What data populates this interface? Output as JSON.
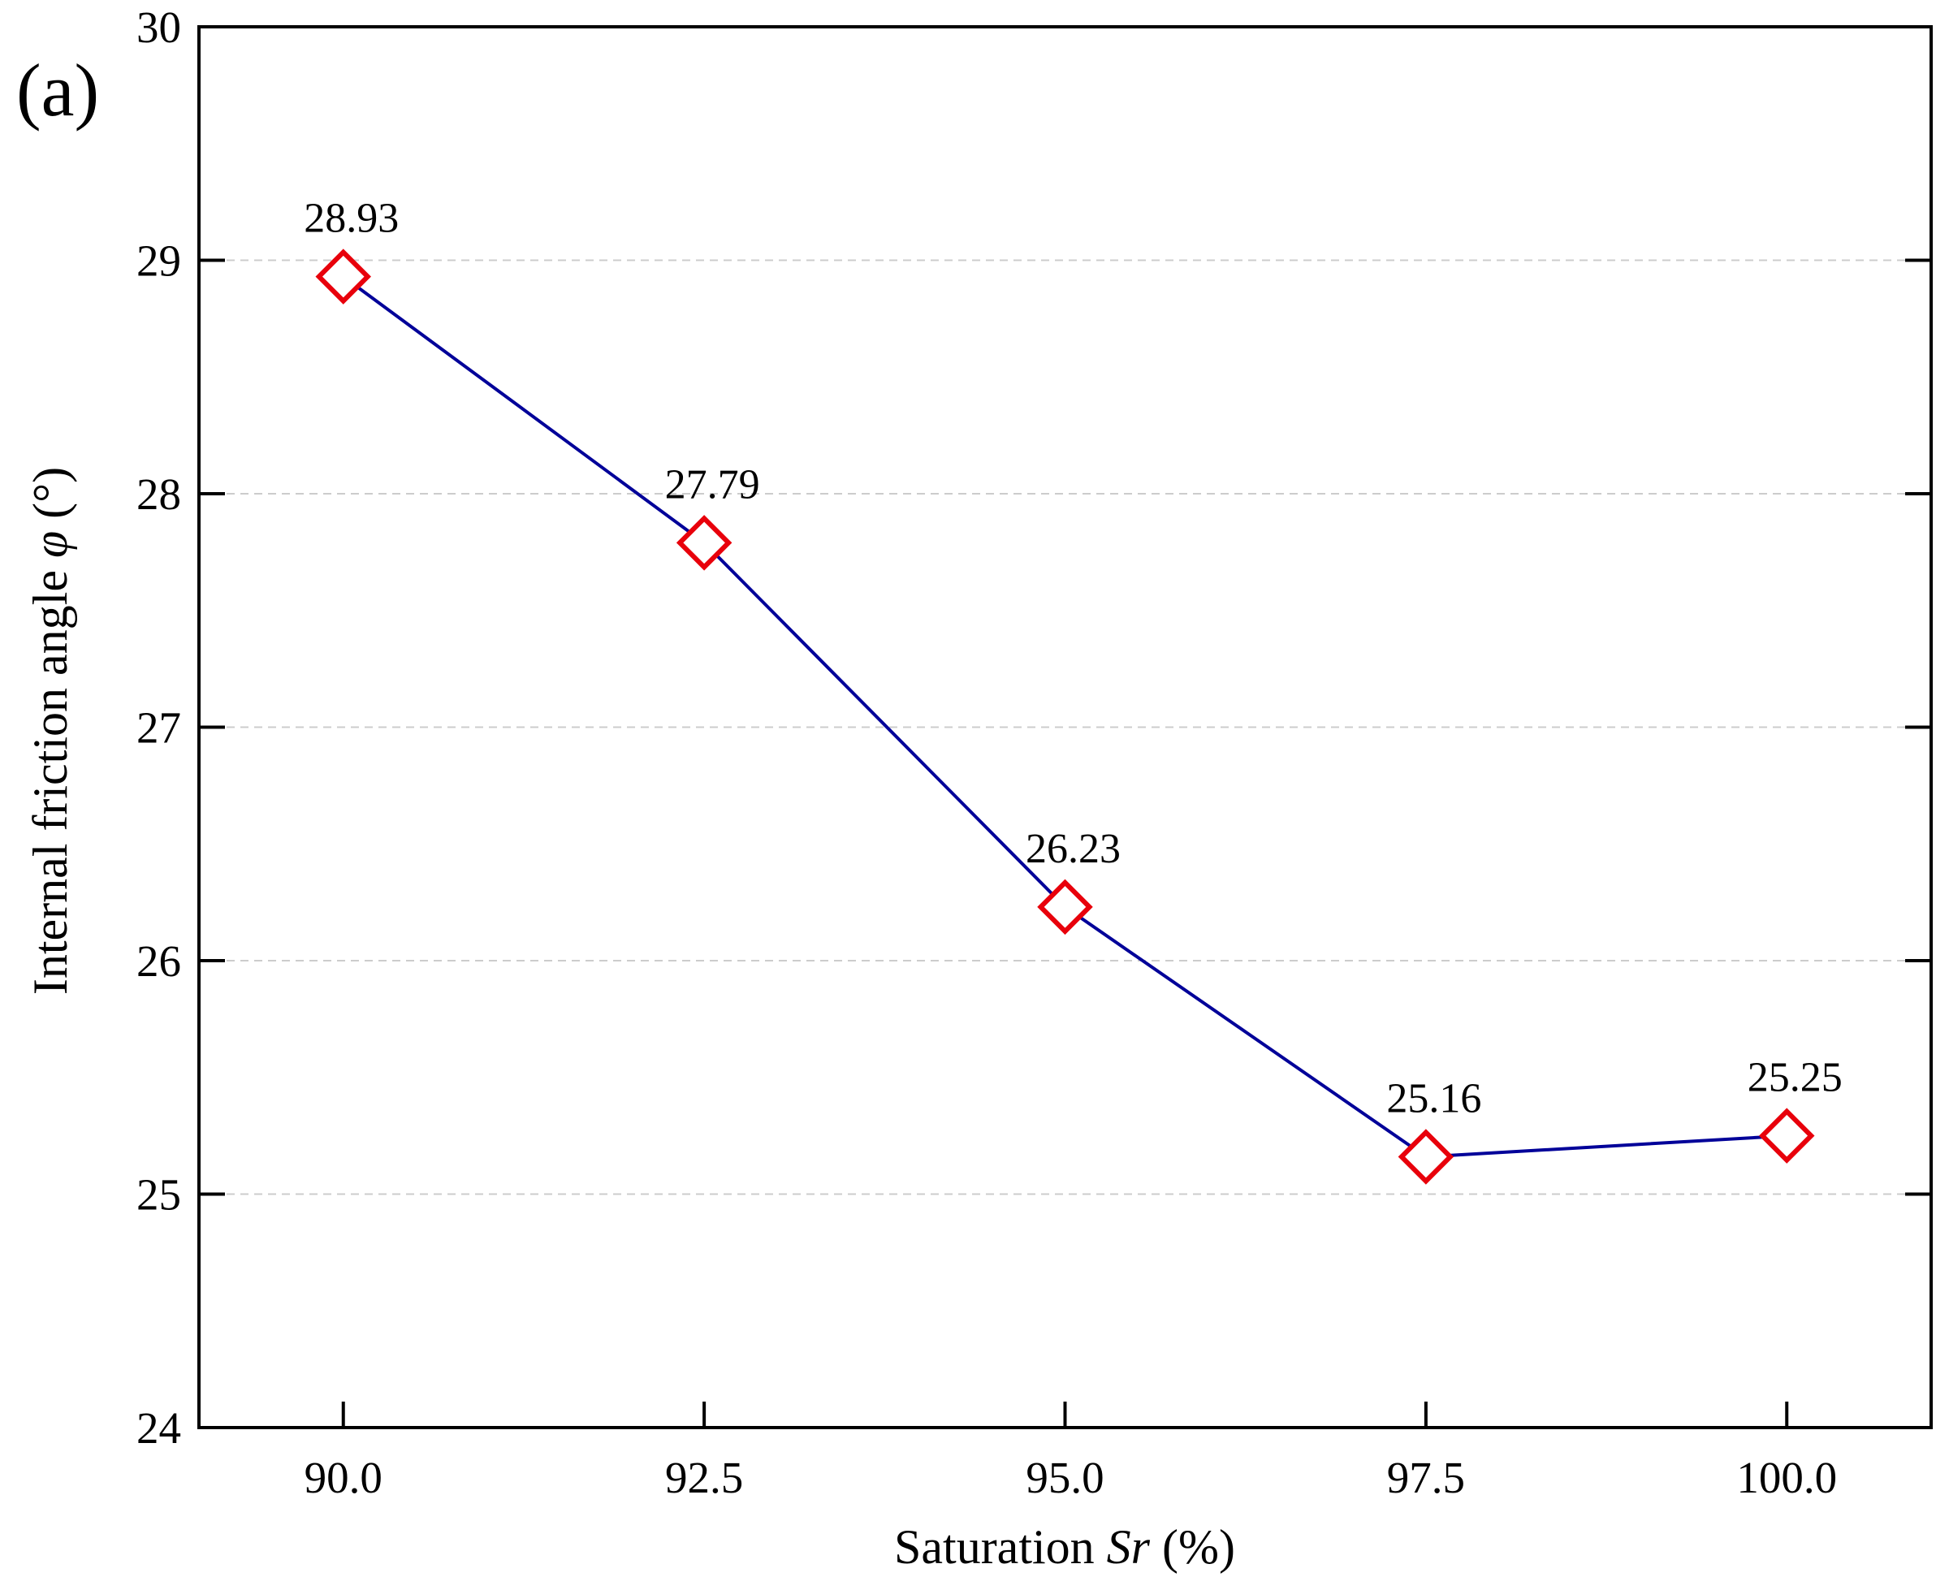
{
  "chart_data": {
    "type": "line",
    "panel_label": "(a)",
    "x": [
      90.0,
      92.5,
      95.0,
      97.5,
      100.0
    ],
    "x_tick_labels": [
      "90.0",
      "92.5",
      "95.0",
      "97.5",
      "100.0"
    ],
    "xlim": [
      89.0,
      101.0
    ],
    "y_ticks": [
      24,
      25,
      26,
      27,
      28,
      29,
      30
    ],
    "y_tick_labels": [
      "24",
      "25",
      "26",
      "27",
      "28",
      "29",
      "30"
    ],
    "ylim": [
      24,
      30
    ],
    "series": [
      {
        "name": "Internal friction angle",
        "values": [
          28.93,
          27.79,
          26.23,
          25.16,
          25.25
        ],
        "labels": [
          "28.93",
          "27.79",
          "26.23",
          "25.16",
          "25.25"
        ],
        "line_color": "#000099",
        "marker": "diamond-open",
        "marker_color": "#e8000b"
      }
    ],
    "xlabel": {
      "prefix": "Saturation ",
      "italic": "Sr",
      "suffix": " (%)"
    },
    "ylabel": {
      "prefix": "Internal friction angle ",
      "italic": "φ",
      "suffix": " (°)"
    },
    "grid": "horizontal-dashed",
    "grid_color": "#cccccc",
    "legend": "none"
  }
}
